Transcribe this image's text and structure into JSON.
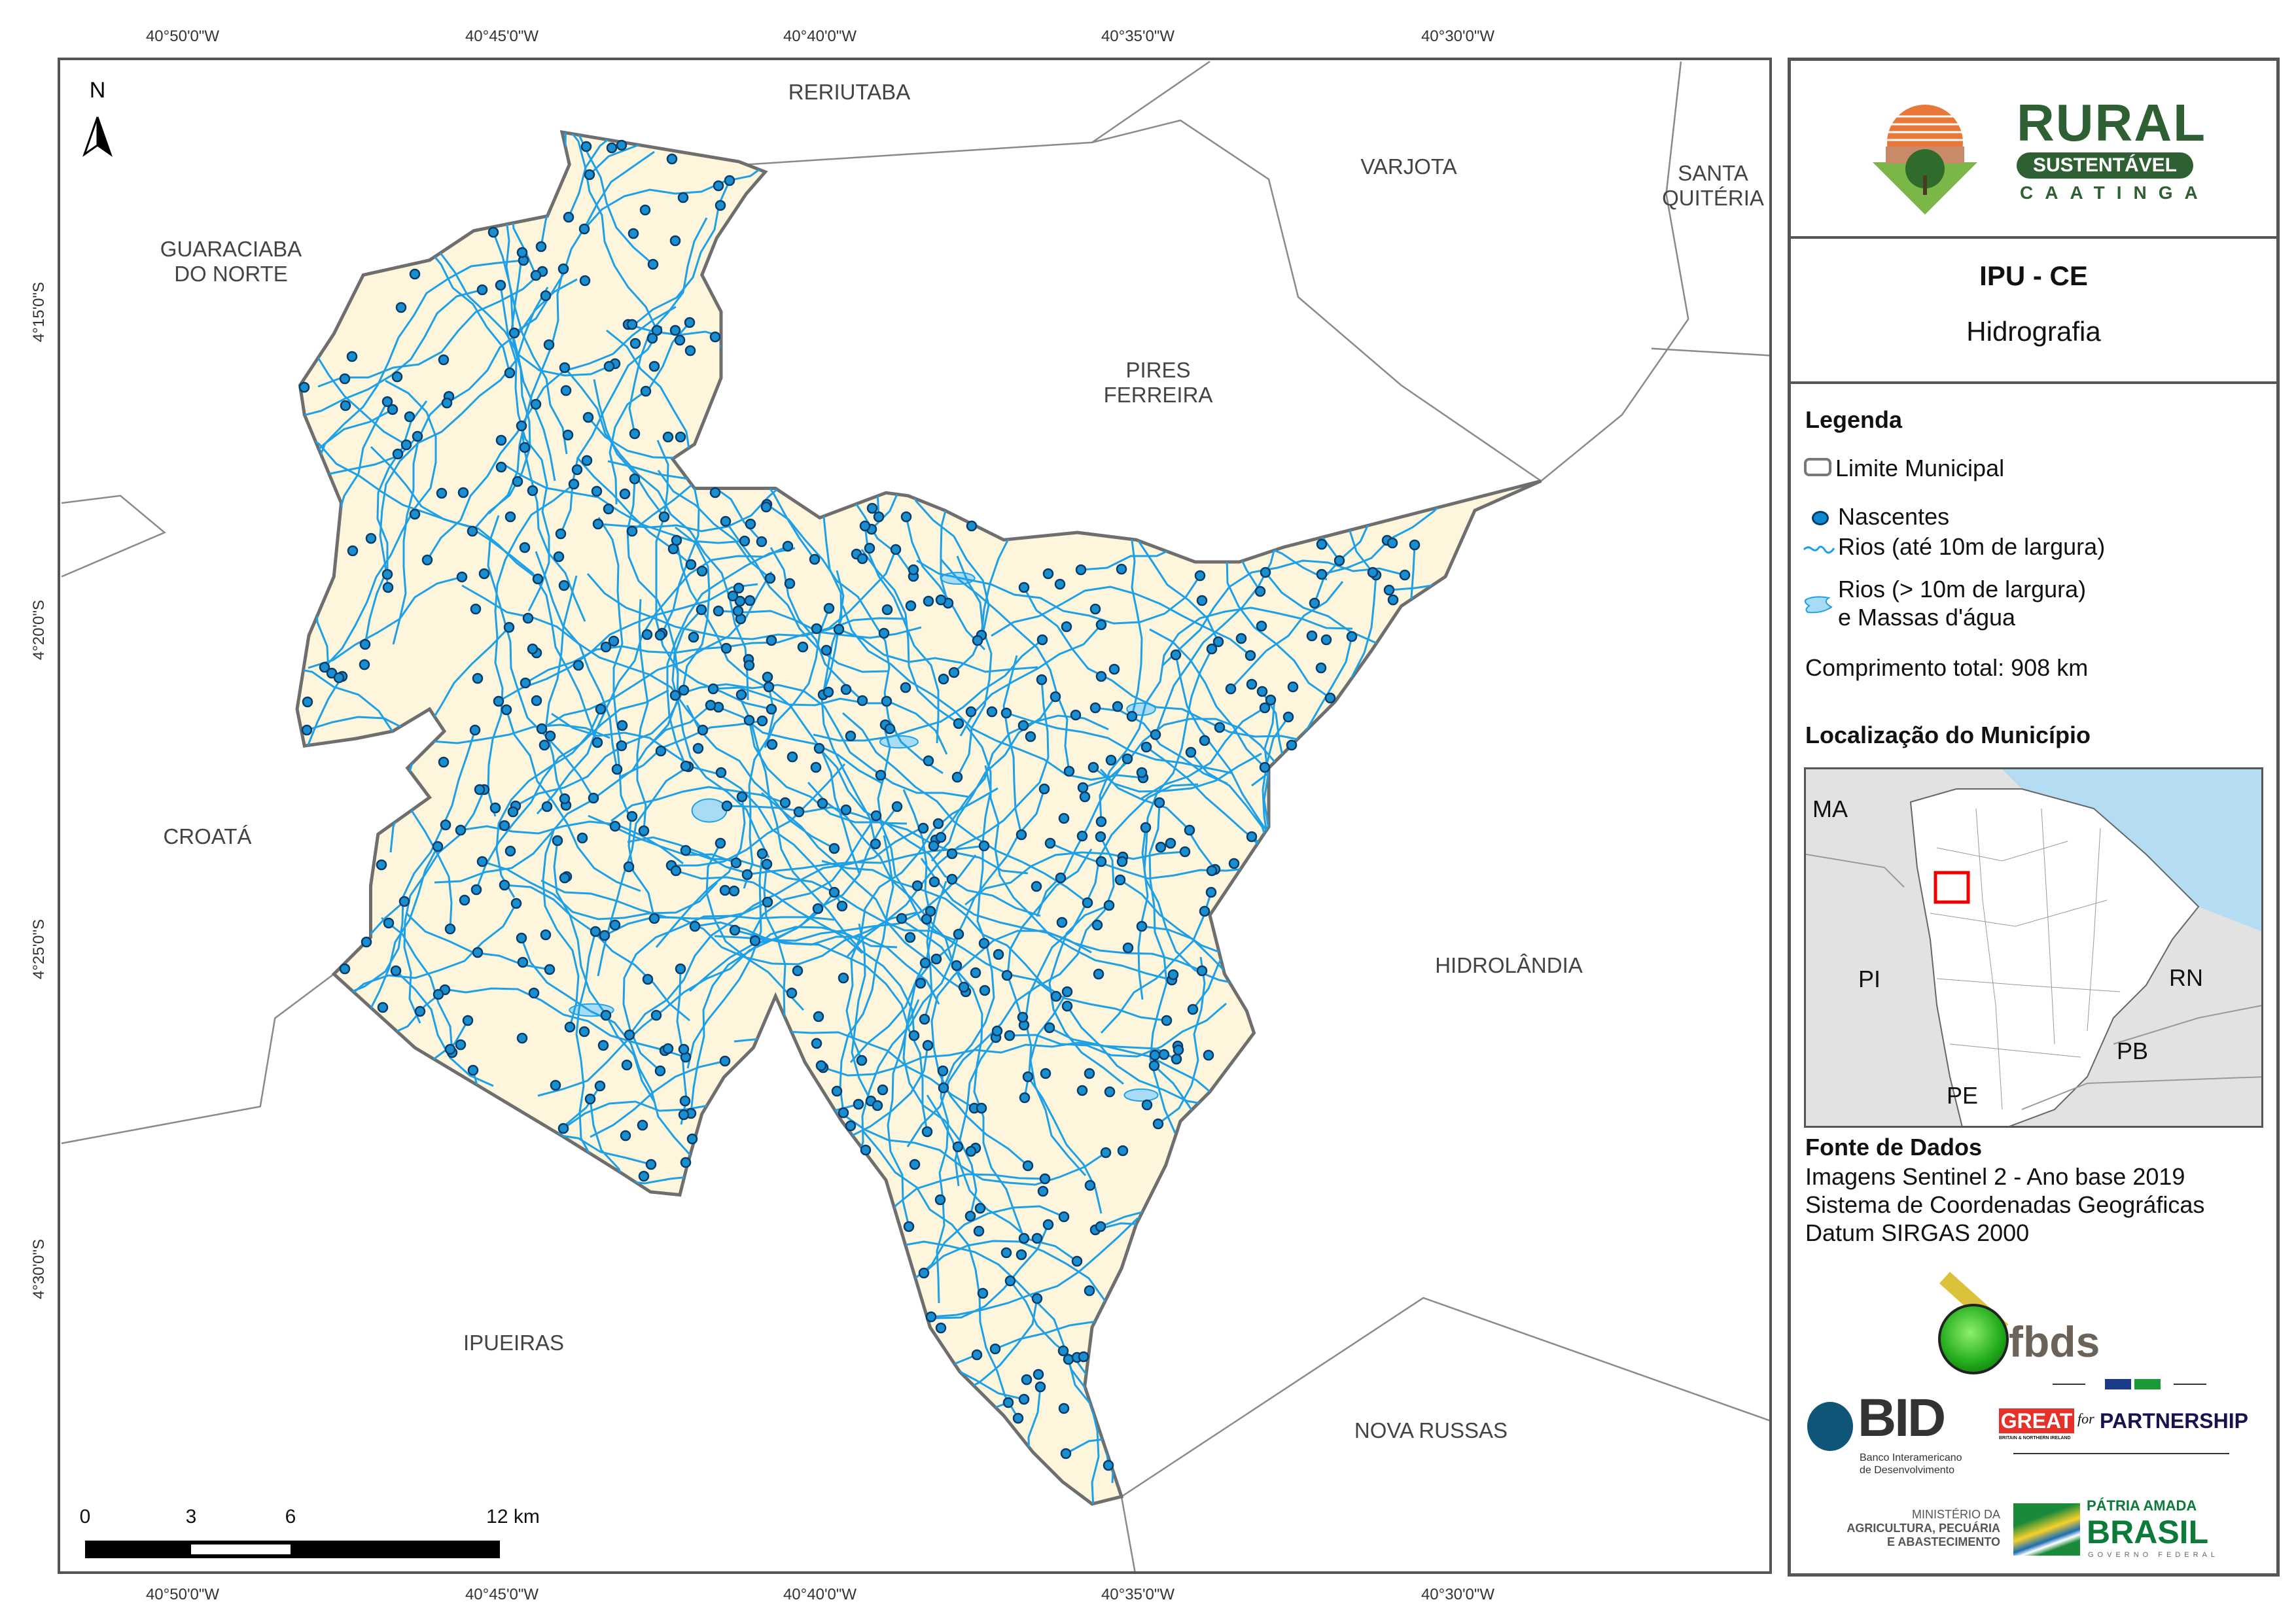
{
  "map": {
    "ticks_top": [
      "40°50'0\"W",
      "40°45'0\"W",
      "40°40'0\"W",
      "40°35'0\"W",
      "40°30'0\"W"
    ],
    "ticks_bottom": [
      "40°50'0\"W",
      "40°45'0\"W",
      "40°40'0\"W",
      "40°35'0\"W",
      "40°30'0\"W"
    ],
    "ticks_left": [
      "4°15'0\"S",
      "4°20'0\"S",
      "4°25'0\"S",
      "4°30'0\"S"
    ],
    "north_label": "N",
    "neighbors": {
      "reriutaba": "RERIUTABA",
      "varjota": "VARJOTA",
      "santa_quiteria_1": "SANTA",
      "santa_quiteria_2": "QUITÉRIA",
      "guaraciaba_1": "GUARACIABA",
      "guaraciaba_2": "DO NORTE",
      "pires_1": "PIRES",
      "pires_2": "FERREIRA",
      "croata": "CROATÁ",
      "hidrolandia": "HIDROLÂNDIA",
      "ipueiras": "IPUEIRAS",
      "nova_russas": "NOVA RUSSAS"
    },
    "scale": {
      "labels": [
        "0",
        "3",
        "6",
        "12 km"
      ]
    },
    "colors": {
      "municipality_fill": "#fdf6dd",
      "boundary": "#6e6e6e",
      "river": "#1ea0e6",
      "spring": "#0a6fa8",
      "water_body": "#a8dcf5"
    }
  },
  "panel": {
    "logo_rural": {
      "line1": "RURAL",
      "line2": "SUSTENTÁVEL",
      "line3": "CAATINGA"
    },
    "title": "IPU - CE",
    "subtitle": "Hidrografia",
    "legend": {
      "heading": "Legenda",
      "items": [
        {
          "label": "Limite Municipal",
          "icon": "boundary-swatch"
        },
        {
          "label": "Nascentes",
          "icon": "spring-dot"
        },
        {
          "label": "Rios (até 10m de largura)",
          "icon": "river-line"
        },
        {
          "label": "Rios (> 10m de largura)",
          "label2": "e Massas d'água",
          "icon": "water-body"
        }
      ],
      "total_length": "Comprimento total:  908 km"
    },
    "location": {
      "heading": "Localização do Município",
      "labels": {
        "ma": "MA",
        "pi": "PI",
        "rn": "RN",
        "pb": "PB",
        "pe": "PE"
      }
    },
    "source": {
      "heading": "Fonte de Dados",
      "lines": [
        "Imagens Sentinel 2 - Ano base 2019",
        "Sistema de Coordenadas Geográficas",
        "Datum SIRGAS 2000"
      ]
    },
    "logos": {
      "fbds": "fbds",
      "bid": "BID",
      "bid_sub1": "Banco Interamericano",
      "bid_sub2": "de Desenvolvimento",
      "great": "GREAT",
      "great_for": "for",
      "great_partnership": "PARTNERSHIP",
      "great_sub": "BRITAIN & NORTHERN IRELAND",
      "min1": "MINISTÉRIO DA",
      "min2": "AGRICULTURA, PECUÁRIA",
      "min3": "E ABASTECIMENTO",
      "brasil1": "PÁTRIA AMADA",
      "brasil2": "BRASIL",
      "brasil3": "GOVERNO FEDERAL"
    }
  }
}
